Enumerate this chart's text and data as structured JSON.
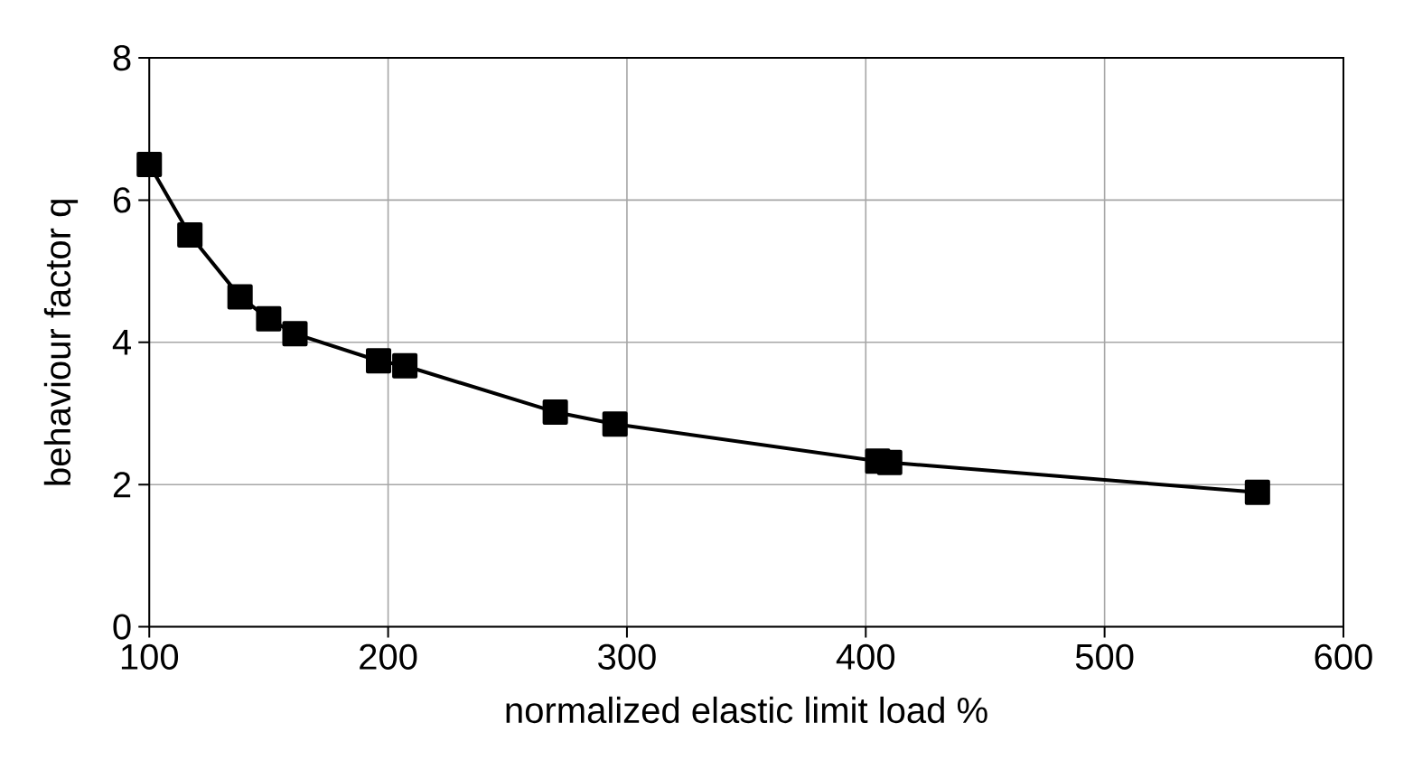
{
  "chart_data": {
    "type": "line",
    "xlabel": "normalized elastic limit load %",
    "ylabel": "behaviour factor q",
    "x": [
      100,
      117,
      138,
      150,
      161,
      196,
      207,
      270,
      295,
      405,
      410,
      564
    ],
    "series": [
      {
        "color": "#000000",
        "values": [
          6.5,
          5.51,
          4.64,
          4.33,
          4.12,
          3.74,
          3.67,
          3.02,
          2.85,
          2.33,
          2.31,
          1.89
        ]
      }
    ],
    "xlim": [
      100,
      600
    ],
    "ylim": [
      0,
      8
    ],
    "xticks": [
      100,
      200,
      300,
      400,
      500,
      600
    ],
    "yticks": [
      0,
      2,
      4,
      6,
      8
    ],
    "grid": true,
    "marker": "square",
    "line_style": "solid"
  }
}
